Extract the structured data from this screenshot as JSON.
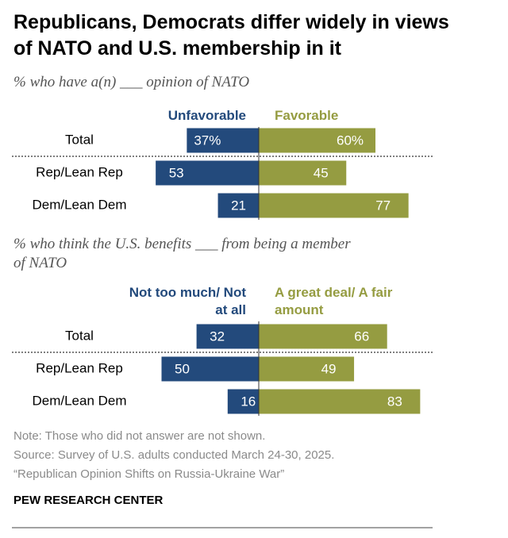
{
  "title": "Republicans, Democrats differ widely in views of NATO and U.S. membership in it",
  "chart_data": [
    {
      "type": "diverging_bar",
      "subtitle": "% who have a(n) ___ opinion of NATO",
      "categories": [
        "Total",
        "Rep/Lean Rep",
        "Dem/Lean Dem"
      ],
      "series": [
        {
          "name": "Unfavorable",
          "color": "#234a7c",
          "values": [
            37,
            53,
            21
          ],
          "value_labels": [
            "37%",
            "53",
            "21"
          ]
        },
        {
          "name": "Favorable",
          "color": "#959c41",
          "values": [
            60,
            45,
            77
          ],
          "value_labels": [
            "60%",
            "45",
            "77"
          ]
        }
      ]
    },
    {
      "type": "diverging_bar",
      "subtitle": "% who think the U.S. benefits ___ from being a member of NATO",
      "categories": [
        "Total",
        "Rep/Lean Rep",
        "Dem/Lean Dem"
      ],
      "series": [
        {
          "name": "Not too much/ Not at all",
          "color": "#234a7c",
          "values": [
            32,
            50,
            16
          ],
          "value_labels": [
            "32",
            "50",
            "16"
          ]
        },
        {
          "name": "A great deal/ A fair amount",
          "color": "#959c41",
          "values": [
            66,
            49,
            83
          ],
          "value_labels": [
            "66",
            "49",
            "83"
          ]
        }
      ]
    }
  ],
  "note": "Note: Those who did not answer are not shown.",
  "source": "Source: Survey of U.S. adults conducted March 24-30, 2025.",
  "report": "“Republican Opinion Shifts on Russia-Ukraine War”",
  "brand": "PEW RESEARCH CENTER"
}
